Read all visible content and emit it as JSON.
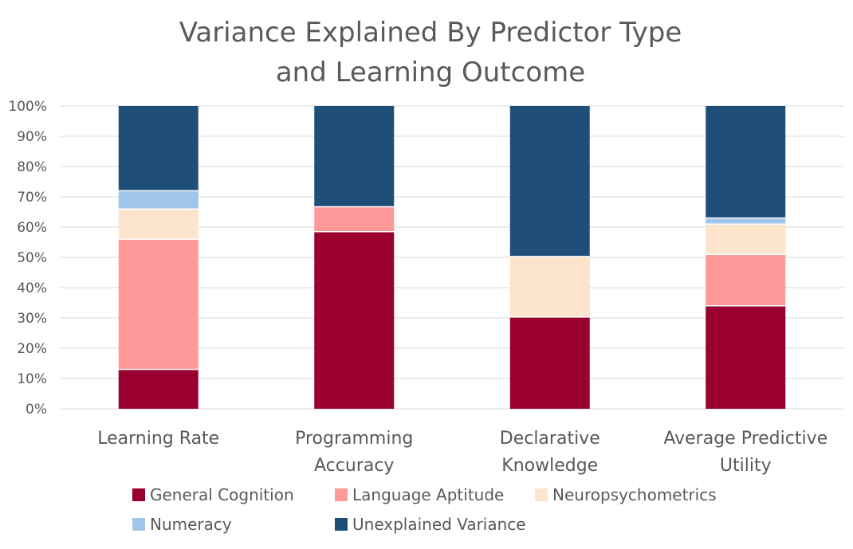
{
  "chart_data": {
    "type": "bar",
    "stacked": true,
    "normalized": true,
    "title_lines": [
      "Variance Explained By Predictor Type",
      "and Learning Outcome"
    ],
    "categories": [
      [
        "Learning Rate"
      ],
      [
        "Programming",
        "Accuracy"
      ],
      [
        "Declarative",
        "Knowledge"
      ],
      [
        "Average Predictive",
        "Utility"
      ]
    ],
    "series": [
      {
        "name": "General Cognition",
        "color": "#99002f",
        "values": [
          13,
          58.5,
          30.3,
          34
        ]
      },
      {
        "name": "Language Aptitude",
        "color": "#ff9999",
        "values": [
          43,
          8.2,
          0,
          17
        ]
      },
      {
        "name": "Neuropsychometrics",
        "color": "#fde4cc",
        "values": [
          10,
          0,
          20,
          10
        ]
      },
      {
        "name": "Numeracy",
        "color": "#9fc5e8",
        "values": [
          6,
          0,
          0,
          2
        ]
      },
      {
        "name": "Unexplained Variance",
        "color": "#1f4e79",
        "values": [
          28,
          33.3,
          49.7,
          37
        ]
      }
    ],
    "ylim": [
      0,
      100
    ],
    "yticks": [
      "0%",
      "10%",
      "20%",
      "30%",
      "40%",
      "50%",
      "60%",
      "70%",
      "80%",
      "90%",
      "100%"
    ],
    "grid": true,
    "legend_position": "bottom"
  }
}
